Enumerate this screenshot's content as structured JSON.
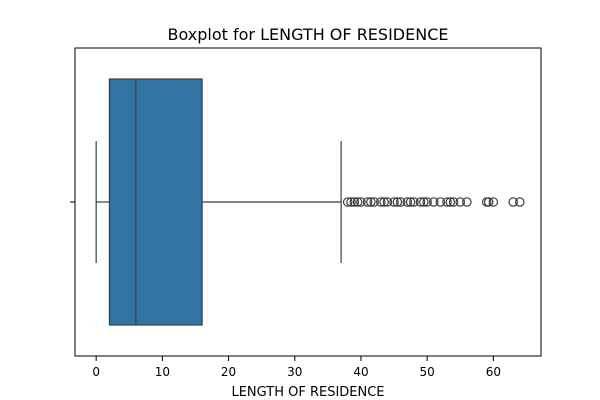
{
  "chart_data": {
    "type": "boxplot",
    "orientation": "horizontal",
    "title": "Boxplot for LENGTH OF RESIDENCE",
    "xlabel": "LENGTH OF RESIDENCE",
    "ylabel": "",
    "xlim": [
      -3.2,
      67.2
    ],
    "xticks": [
      0,
      10,
      20,
      30,
      40,
      50,
      60
    ],
    "grid": false,
    "box_color": "#3274a1",
    "line_color": "#3f3f3f",
    "series": [
      {
        "whisker_low": 0,
        "q1": 2,
        "median": 6,
        "q3": 16,
        "whisker_high": 37,
        "outliers": [
          38,
          38.5,
          39,
          39.5,
          40,
          41,
          41.5,
          42,
          43,
          43.5,
          44,
          45,
          45.5,
          46,
          47,
          47.5,
          48,
          49,
          49.5,
          50,
          51,
          52,
          53,
          53.5,
          54,
          55,
          56,
          59,
          59.3,
          60,
          63,
          64
        ]
      }
    ]
  }
}
